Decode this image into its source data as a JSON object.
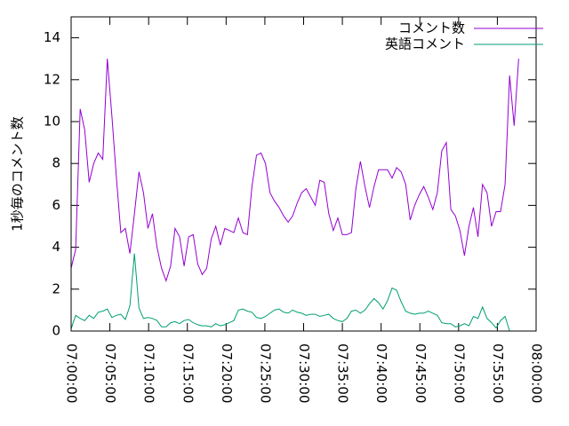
{
  "chart_data": {
    "type": "line",
    "ylabel": "1秒毎のコメント数",
    "x": [
      "07:00:00",
      "07:00:35",
      "07:01:10",
      "07:01:45",
      "07:02:20",
      "07:02:55",
      "07:03:30",
      "07:04:05",
      "07:04:40",
      "07:05:15",
      "07:05:50",
      "07:06:25",
      "07:07:00",
      "07:07:35",
      "07:08:10",
      "07:08:45",
      "07:09:20",
      "07:09:55",
      "07:10:30",
      "07:11:05",
      "07:11:40",
      "07:12:15",
      "07:12:50",
      "07:13:25",
      "07:14:00",
      "07:14:35",
      "07:15:10",
      "07:15:45",
      "07:16:20",
      "07:16:55",
      "07:17:30",
      "07:18:05",
      "07:18:40",
      "07:19:15",
      "07:19:50",
      "07:20:25",
      "07:21:00",
      "07:21:35",
      "07:22:10",
      "07:22:45",
      "07:23:20",
      "07:23:55",
      "07:24:30",
      "07:25:05",
      "07:25:40",
      "07:26:15",
      "07:26:50",
      "07:27:25",
      "07:28:00",
      "07:28:35",
      "07:29:10",
      "07:29:45",
      "07:30:20",
      "07:30:55",
      "07:31:30",
      "07:32:05",
      "07:32:40",
      "07:33:15",
      "07:33:50",
      "07:34:25",
      "07:35:00",
      "07:35:35",
      "07:36:10",
      "07:36:45",
      "07:37:20",
      "07:37:55",
      "07:38:30",
      "07:39:05",
      "07:39:40",
      "07:40:15",
      "07:40:50",
      "07:41:25",
      "07:42:00",
      "07:42:35",
      "07:43:10",
      "07:43:45",
      "07:44:20",
      "07:44:55",
      "07:45:30",
      "07:46:05",
      "07:46:40",
      "07:47:15",
      "07:47:50",
      "07:48:25",
      "07:49:00",
      "07:49:35",
      "07:50:10",
      "07:50:45",
      "07:51:20",
      "07:51:55",
      "07:52:30",
      "07:53:05",
      "07:53:40",
      "07:54:15",
      "07:54:50",
      "07:55:25",
      "07:56:00",
      "07:56:35",
      "07:57:10",
      "07:57:45"
    ],
    "series": [
      {
        "name": "コメント数",
        "color": "#9400d3",
        "values": [
          3.0,
          3.9,
          10.6,
          9.6,
          7.1,
          8.0,
          8.5,
          8.2,
          13.0,
          10.3,
          7.4,
          4.7,
          4.9,
          3.7,
          5.6,
          7.6,
          6.6,
          4.9,
          5.6,
          4.0,
          3.0,
          2.4,
          3.1,
          4.9,
          4.5,
          3.1,
          4.5,
          4.6,
          3.2,
          2.7,
          3.0,
          4.4,
          5.0,
          4.1,
          4.9,
          4.8,
          4.7,
          5.4,
          4.7,
          4.6,
          6.9,
          8.4,
          8.5,
          8.0,
          6.6,
          6.2,
          5.9,
          5.5,
          5.2,
          5.5,
          6.1,
          6.6,
          6.8,
          6.4,
          6.0,
          7.2,
          7.1,
          5.6,
          4.8,
          5.4,
          4.6,
          4.6,
          4.7,
          6.8,
          8.1,
          6.9,
          5.9,
          6.9,
          7.7,
          7.7,
          7.7,
          7.3,
          7.8,
          7.6,
          7.0,
          5.3,
          6.0,
          6.5,
          6.9,
          6.4,
          5.8,
          6.6,
          8.6,
          9.0,
          5.8,
          5.5,
          4.8,
          3.6,
          5.0,
          5.9,
          4.5,
          7.0,
          6.6,
          5.0,
          5.7,
          5.7,
          7.0,
          12.2,
          9.8,
          13.0
        ]
      },
      {
        "name": "英語コメント",
        "color": "#009e73",
        "values": [
          0.1,
          0.75,
          0.6,
          0.5,
          0.75,
          0.6,
          0.9,
          0.95,
          1.05,
          0.65,
          0.75,
          0.8,
          0.55,
          1.2,
          3.7,
          1.1,
          0.6,
          0.65,
          0.6,
          0.5,
          0.2,
          0.2,
          0.4,
          0.45,
          0.35,
          0.5,
          0.55,
          0.4,
          0.3,
          0.25,
          0.25,
          0.2,
          0.35,
          0.25,
          0.3,
          0.4,
          0.5,
          1.0,
          1.05,
          0.95,
          0.9,
          0.65,
          0.6,
          0.7,
          0.85,
          1.0,
          1.05,
          0.9,
          0.85,
          1.0,
          0.9,
          0.85,
          0.75,
          0.8,
          0.8,
          0.7,
          0.75,
          0.8,
          0.6,
          0.5,
          0.45,
          0.6,
          0.95,
          1.0,
          0.85,
          1.0,
          1.3,
          1.55,
          1.35,
          1.05,
          1.45,
          2.05,
          1.95,
          1.4,
          0.95,
          0.85,
          0.8,
          0.85,
          0.85,
          0.95,
          0.85,
          0.75,
          0.4,
          0.35,
          0.35,
          0.2,
          0.25,
          0.35,
          0.25,
          0.7,
          0.6,
          1.15,
          0.6,
          0.4,
          0.15,
          0.5,
          0.7,
          0.0,
          0.0,
          0.0
        ]
      }
    ],
    "xlim": [
      "07:00:00",
      "08:00:00"
    ],
    "xticks": [
      "07:00:00",
      "07:05:00",
      "07:10:00",
      "07:15:00",
      "07:20:00",
      "07:25:00",
      "07:30:00",
      "07:35:00",
      "07:40:00",
      "07:45:00",
      "07:50:00",
      "07:55:00",
      "08:00:00"
    ],
    "ylim": [
      0,
      15
    ],
    "yticks": [
      0,
      2,
      4,
      6,
      8,
      10,
      12,
      14
    ],
    "legend": "top-right",
    "grid": false
  }
}
